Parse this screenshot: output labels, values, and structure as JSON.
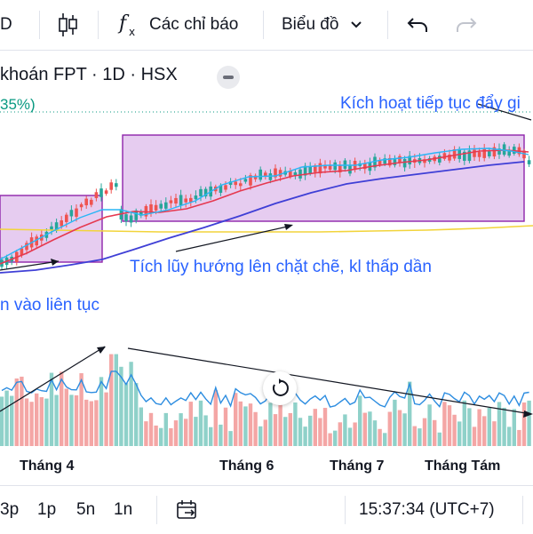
{
  "toolbar": {
    "symbol_partial": "D",
    "indicators_label": "Các chỉ báo",
    "chart_type_label": "Biểu đồ"
  },
  "legend": {
    "title": "khoán FPT · 1D · HSX",
    "change_pct": "35%)"
  },
  "annotations": {
    "top_right": "Kích hoạt tiếp tục đẩy gi",
    "middle": "Tích lũy hướng lên chặt chẽ, kl thấp dần",
    "left": "n vào liên tục"
  },
  "time_axis": {
    "labels": [
      "Tháng 4",
      "Tháng 6",
      "Tháng 7",
      "Tháng Tám"
    ]
  },
  "bottom": {
    "ranges": [
      "3p",
      "1p",
      "5n",
      "1n"
    ],
    "clock": "15:37:34 (UTC+7)"
  },
  "colors": {
    "up": "#26a69a",
    "down": "#ef5350",
    "ma_fast": "#29b6f6",
    "ma_mid": "#e53950",
    "ma_slow": "#3f3fd6",
    "ma_long": "#f2d43b",
    "box_fill": "#e6ccf0",
    "box_stroke": "#8e24aa",
    "annotation": "#2962ff"
  }
}
